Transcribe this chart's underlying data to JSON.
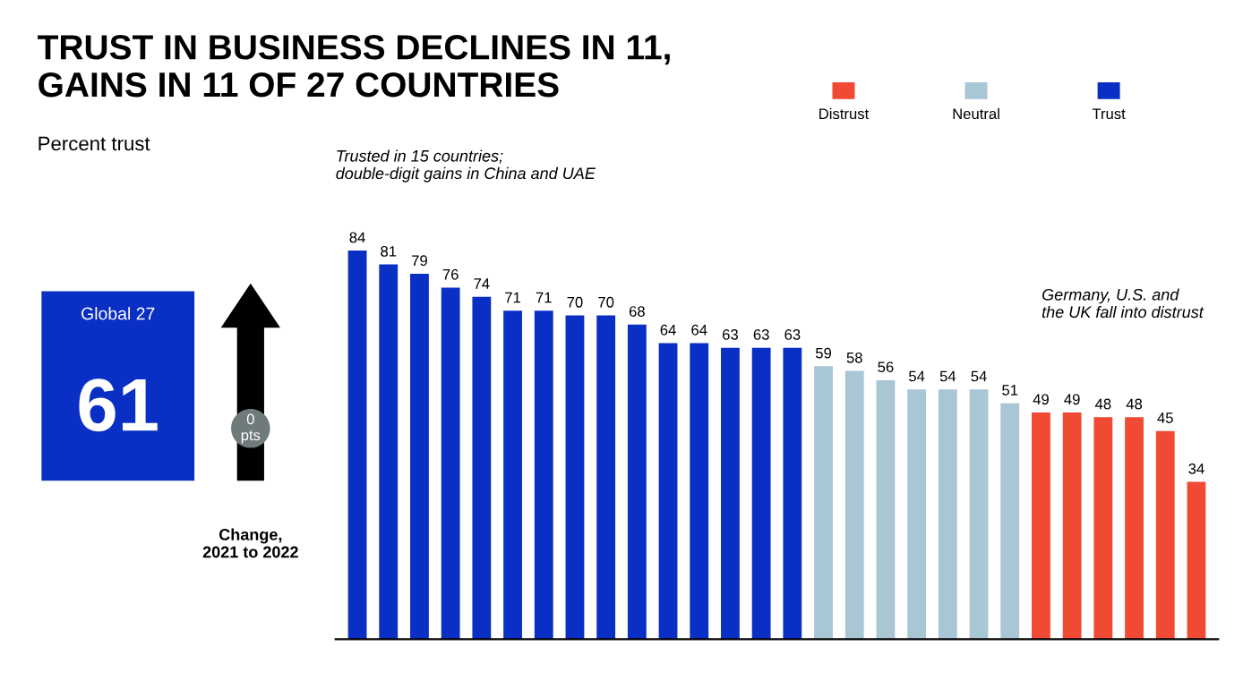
{
  "chart_data": {
    "type": "bar",
    "title": "TRUST IN BUSINESS DECLINES IN 11,\nGAINS IN 11 OF 27 COUNTRIES",
    "subtitle": "Percent trust",
    "categories": [
      null,
      null,
      null,
      null,
      null,
      null,
      null,
      null,
      null,
      null,
      null,
      null,
      null,
      null,
      null,
      null,
      null,
      null,
      null,
      null,
      null,
      null,
      null,
      null,
      null,
      null,
      null,
      null
    ],
    "values": [
      84,
      81,
      79,
      76,
      74,
      71,
      71,
      70,
      70,
      68,
      64,
      64,
      63,
      63,
      63,
      59,
      58,
      56,
      54,
      54,
      54,
      51,
      49,
      49,
      48,
      48,
      45,
      34
    ],
    "colors": [
      "#0a2fc4",
      "#0a2fc4",
      "#0a2fc4",
      "#0a2fc4",
      "#0a2fc4",
      "#0a2fc4",
      "#0a2fc4",
      "#0a2fc4",
      "#0a2fc4",
      "#0a2fc4",
      "#0a2fc4",
      "#0a2fc4",
      "#0a2fc4",
      "#0a2fc4",
      "#0a2fc4",
      "#a9c6d4",
      "#a9c6d4",
      "#a9c6d4",
      "#a9c6d4",
      "#a9c6d4",
      "#a9c6d4",
      "#a9c6d4",
      "#f04a35",
      "#f04a35",
      "#f04a35",
      "#f04a35",
      "#f04a35",
      "#f04a35"
    ],
    "data_labels": true,
    "annotations": [
      "Trusted in 15 countries;\ndouble-digit gains in China and UAE",
      "Germany, U.S. and\nthe UK fall into distrust",
      "Global 27",
      "61",
      "0\npts",
      "Change,\n2021 to 2022",
      "Distrust",
      "Neutral",
      "Trust"
    ]
  }
}
